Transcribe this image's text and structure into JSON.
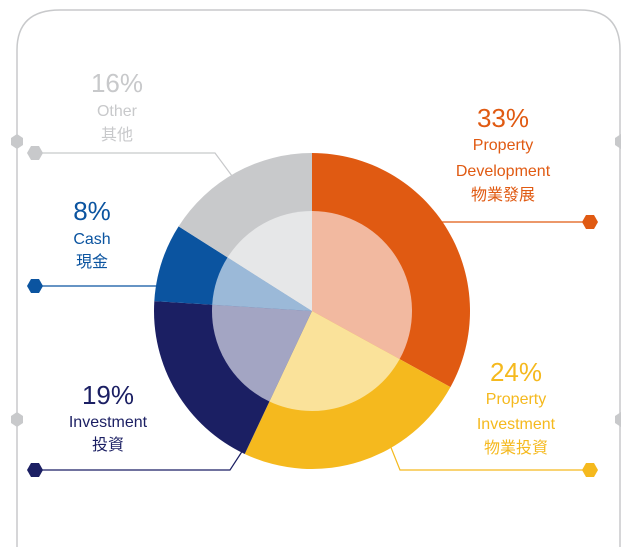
{
  "chart_data": {
    "type": "pie",
    "categories": [
      [
        "Property",
        "Development",
        "物業發展"
      ],
      [
        "Property",
        "Investment",
        "物業投資"
      ],
      [
        "Investment",
        "投資"
      ],
      [
        "Cash",
        "現金"
      ],
      [
        "Other",
        "其他"
      ]
    ],
    "values": [
      33,
      24,
      19,
      8,
      16
    ],
    "value_labels": [
      "33%",
      "24%",
      "19%",
      "8%",
      "16%"
    ],
    "colors": [
      "#e05a12",
      "#f5b91e",
      "#1b1f63",
      "#0b54a0",
      "#c8c9cb"
    ],
    "inner_colors": [
      "#f2b9a0",
      "#fae29a",
      "#a3a5c3",
      "#9bb9d8",
      "#e6e7e8"
    ]
  }
}
